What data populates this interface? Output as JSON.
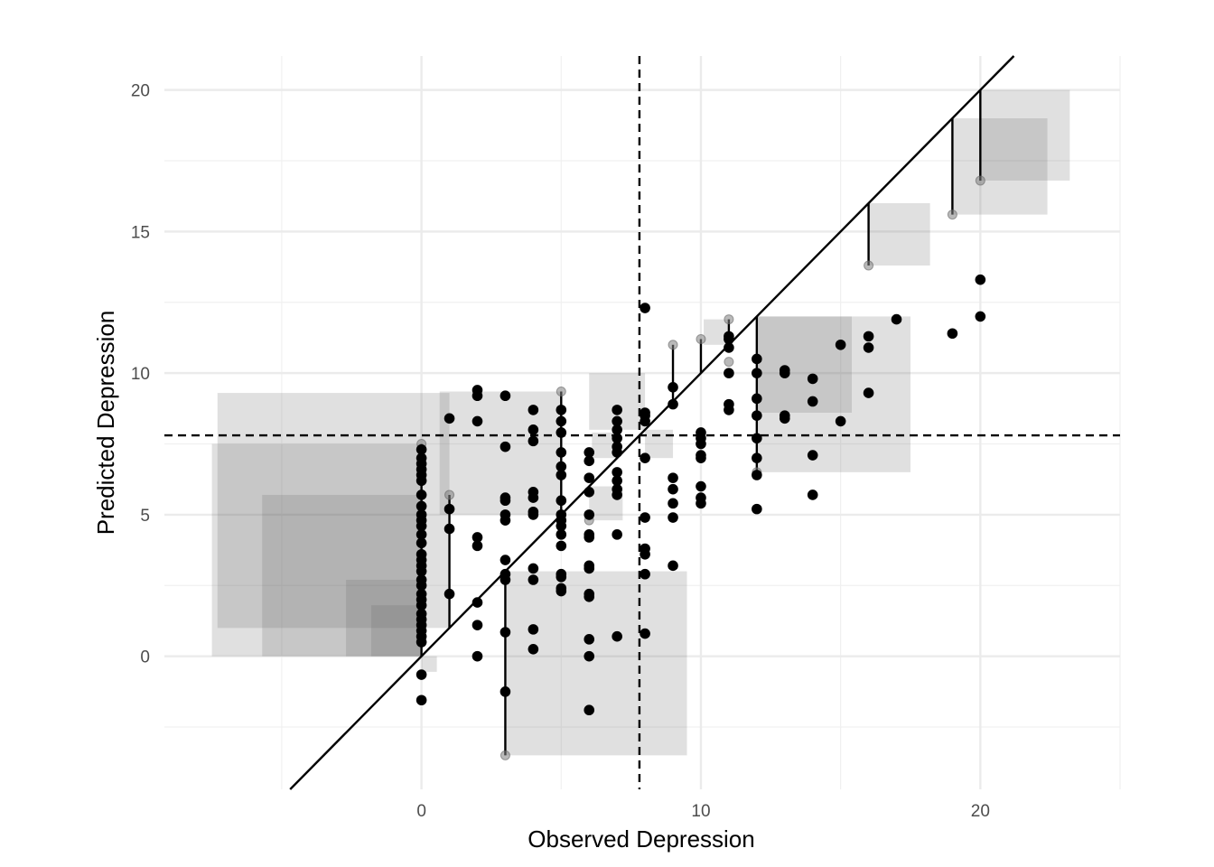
{
  "chart_data": {
    "type": "scatter",
    "title": "",
    "xlabel": "Observed Depression",
    "ylabel": "Predicted Depression",
    "xlim": [
      -9.2,
      25
    ],
    "ylim": [
      -4.7,
      21.2
    ],
    "x_ticks": [
      0,
      10,
      20
    ],
    "y_ticks": [
      0,
      5,
      10,
      15,
      20
    ],
    "x_tick_labels": [
      "0",
      "10",
      "20"
    ],
    "y_tick_labels": [
      "0",
      "5",
      "10",
      "15",
      "20"
    ],
    "grid": true,
    "legend": "none",
    "reference_lines": {
      "identity": {
        "slope": 1,
        "intercept": 0,
        "style": "solid"
      },
      "vertical_dashed_x": 7.8,
      "horizontal_dashed_y": 7.8
    },
    "squared_error_squares": [
      {
        "x": 0,
        "y": 7.5
      },
      {
        "x": 0,
        "y": 5.7
      },
      {
        "x": 0,
        "y": 2.7
      },
      {
        "x": 0,
        "y": 1.8
      },
      {
        "x": 0,
        "y": -0.55
      },
      {
        "x": 1,
        "y": 9.3
      },
      {
        "x": 3,
        "y": -3.5
      },
      {
        "x": 5,
        "y": 9.35
      },
      {
        "x": 6,
        "y": 4.8
      },
      {
        "x": 7,
        "y": 7.9
      },
      {
        "x": 8,
        "y": 10.0
      },
      {
        "x": 8,
        "y": 7.0
      },
      {
        "x": 11,
        "y": 11.9
      },
      {
        "x": 12,
        "y": 6.5
      },
      {
        "x": 12,
        "y": 8.6
      },
      {
        "x": 16,
        "y": 13.8
      },
      {
        "x": 19,
        "y": 15.6
      },
      {
        "x": 20,
        "y": 16.8
      }
    ],
    "residual_segments": [
      {
        "x": 0,
        "y_obs": 0,
        "y_pred": 7.5
      },
      {
        "x": 1,
        "y_obs": 1,
        "y_pred": 5.7
      },
      {
        "x": 3,
        "y_obs": 3,
        "y_pred": -3.5
      },
      {
        "x": 5,
        "y_obs": 5,
        "y_pred": 9.35
      },
      {
        "x": 9,
        "y_obs": 9,
        "y_pred": 11.0
      },
      {
        "x": 10,
        "y_obs": 10,
        "y_pred": 11.2
      },
      {
        "x": 11,
        "y_obs": 11,
        "y_pred": 11.9
      },
      {
        "x": 12,
        "y_obs": 12,
        "y_pred": 6.5
      },
      {
        "x": 16,
        "y_obs": 16,
        "y_pred": 13.8
      },
      {
        "x": 19,
        "y_obs": 19,
        "y_pred": 15.6
      },
      {
        "x": 20,
        "y_obs": 20,
        "y_pred": 16.8
      }
    ],
    "highlight_points": [
      {
        "x": 0,
        "y": 7.5
      },
      {
        "x": 1,
        "y": 5.7
      },
      {
        "x": 3,
        "y": -3.5
      },
      {
        "x": 5,
        "y": 9.35
      },
      {
        "x": 6,
        "y": 4.8
      },
      {
        "x": 9,
        "y": 11.0
      },
      {
        "x": 10,
        "y": 11.2
      },
      {
        "x": 11,
        "y": 11.9
      },
      {
        "x": 11,
        "y": 10.4
      },
      {
        "x": 12,
        "y": 6.5
      },
      {
        "x": 16,
        "y": 13.8
      },
      {
        "x": 19,
        "y": 15.6
      },
      {
        "x": 20,
        "y": 16.8
      }
    ],
    "points": [
      {
        "x": 0,
        "y": 7.3
      },
      {
        "x": 0,
        "y": 7.0
      },
      {
        "x": 0,
        "y": 6.8
      },
      {
        "x": 0,
        "y": 6.6
      },
      {
        "x": 0,
        "y": 6.4
      },
      {
        "x": 0,
        "y": 6.2
      },
      {
        "x": 0,
        "y": 5.7
      },
      {
        "x": 0,
        "y": 5.3
      },
      {
        "x": 0,
        "y": 5.0
      },
      {
        "x": 0,
        "y": 4.8
      },
      {
        "x": 0,
        "y": 4.6
      },
      {
        "x": 0,
        "y": 4.3
      },
      {
        "x": 0,
        "y": 4.0
      },
      {
        "x": 0,
        "y": 3.6
      },
      {
        "x": 0,
        "y": 3.4
      },
      {
        "x": 0,
        "y": 3.2
      },
      {
        "x": 0,
        "y": 3.0
      },
      {
        "x": 0,
        "y": 2.7
      },
      {
        "x": 0,
        "y": 2.5
      },
      {
        "x": 0,
        "y": 2.2
      },
      {
        "x": 0,
        "y": 2.0
      },
      {
        "x": 0,
        "y": 1.8
      },
      {
        "x": 0,
        "y": 1.5
      },
      {
        "x": 0,
        "y": 1.3
      },
      {
        "x": 0,
        "y": 1.1
      },
      {
        "x": 0,
        "y": 0.9
      },
      {
        "x": 0,
        "y": 0.7
      },
      {
        "x": 0,
        "y": 0.5
      },
      {
        "x": 0,
        "y": -0.65
      },
      {
        "x": 0,
        "y": -1.55
      },
      {
        "x": 1,
        "y": 8.4
      },
      {
        "x": 1,
        "y": 5.2
      },
      {
        "x": 1,
        "y": 4.5
      },
      {
        "x": 1,
        "y": 2.2
      },
      {
        "x": 2,
        "y": 9.4
      },
      {
        "x": 2,
        "y": 9.2
      },
      {
        "x": 2,
        "y": 8.3
      },
      {
        "x": 2,
        "y": 4.2
      },
      {
        "x": 2,
        "y": 3.9
      },
      {
        "x": 2,
        "y": 1.9
      },
      {
        "x": 2,
        "y": 1.1
      },
      {
        "x": 2,
        "y": 0.0
      },
      {
        "x": 3,
        "y": 9.2
      },
      {
        "x": 3,
        "y": 7.4
      },
      {
        "x": 3,
        "y": 5.6
      },
      {
        "x": 3,
        "y": 5.5
      },
      {
        "x": 3,
        "y": 5.0
      },
      {
        "x": 3,
        "y": 4.8
      },
      {
        "x": 3,
        "y": 3.4
      },
      {
        "x": 3,
        "y": 2.9
      },
      {
        "x": 3,
        "y": 2.7
      },
      {
        "x": 3,
        "y": 0.85
      },
      {
        "x": 3,
        "y": -1.25
      },
      {
        "x": 4,
        "y": 8.7
      },
      {
        "x": 4,
        "y": 8.0
      },
      {
        "x": 4,
        "y": 7.6
      },
      {
        "x": 4,
        "y": 5.8
      },
      {
        "x": 4,
        "y": 5.6
      },
      {
        "x": 4,
        "y": 5.1
      },
      {
        "x": 4,
        "y": 5.0
      },
      {
        "x": 4,
        "y": 3.1
      },
      {
        "x": 4,
        "y": 2.7
      },
      {
        "x": 4,
        "y": 0.95
      },
      {
        "x": 4,
        "y": 0.25
      },
      {
        "x": 5,
        "y": 8.7
      },
      {
        "x": 5,
        "y": 8.3
      },
      {
        "x": 5,
        "y": 7.9
      },
      {
        "x": 5,
        "y": 7.2
      },
      {
        "x": 5,
        "y": 6.7
      },
      {
        "x": 5,
        "y": 6.4
      },
      {
        "x": 5,
        "y": 5.5
      },
      {
        "x": 5,
        "y": 5.0
      },
      {
        "x": 5,
        "y": 4.8
      },
      {
        "x": 5,
        "y": 4.6
      },
      {
        "x": 5,
        "y": 4.3
      },
      {
        "x": 5,
        "y": 3.9
      },
      {
        "x": 5,
        "y": 2.9
      },
      {
        "x": 5,
        "y": 2.8
      },
      {
        "x": 5,
        "y": 2.4
      },
      {
        "x": 5,
        "y": 2.3
      },
      {
        "x": 6,
        "y": 7.2
      },
      {
        "x": 6,
        "y": 6.9
      },
      {
        "x": 6,
        "y": 6.3
      },
      {
        "x": 6,
        "y": 5.8
      },
      {
        "x": 6,
        "y": 5.0
      },
      {
        "x": 6,
        "y": 4.3
      },
      {
        "x": 6,
        "y": 4.2
      },
      {
        "x": 6,
        "y": 3.2
      },
      {
        "x": 6,
        "y": 3.1
      },
      {
        "x": 6,
        "y": 2.2
      },
      {
        "x": 6,
        "y": 2.1
      },
      {
        "x": 6,
        "y": 0.6
      },
      {
        "x": 6,
        "y": 0.0
      },
      {
        "x": 6,
        "y": -1.9
      },
      {
        "x": 7,
        "y": 8.7
      },
      {
        "x": 7,
        "y": 8.3
      },
      {
        "x": 7,
        "y": 8.0
      },
      {
        "x": 7,
        "y": 7.7
      },
      {
        "x": 7,
        "y": 7.4
      },
      {
        "x": 7,
        "y": 7.2
      },
      {
        "x": 7,
        "y": 6.5
      },
      {
        "x": 7,
        "y": 6.2
      },
      {
        "x": 7,
        "y": 5.9
      },
      {
        "x": 7,
        "y": 5.7
      },
      {
        "x": 7,
        "y": 4.3
      },
      {
        "x": 7,
        "y": 0.7
      },
      {
        "x": 8,
        "y": 12.3
      },
      {
        "x": 8,
        "y": 8.6
      },
      {
        "x": 8,
        "y": 8.5
      },
      {
        "x": 8,
        "y": 8.3
      },
      {
        "x": 8,
        "y": 7.0
      },
      {
        "x": 8,
        "y": 4.9
      },
      {
        "x": 8,
        "y": 3.8
      },
      {
        "x": 8,
        "y": 3.6
      },
      {
        "x": 8,
        "y": 2.9
      },
      {
        "x": 8,
        "y": 0.8
      },
      {
        "x": 9,
        "y": 9.5
      },
      {
        "x": 9,
        "y": 8.9
      },
      {
        "x": 9,
        "y": 6.3
      },
      {
        "x": 9,
        "y": 5.9
      },
      {
        "x": 9,
        "y": 5.4
      },
      {
        "x": 9,
        "y": 4.9
      },
      {
        "x": 9,
        "y": 3.2
      },
      {
        "x": 10,
        "y": 7.9
      },
      {
        "x": 10,
        "y": 7.7
      },
      {
        "x": 10,
        "y": 7.5
      },
      {
        "x": 10,
        "y": 7.1
      },
      {
        "x": 10,
        "y": 7.0
      },
      {
        "x": 10,
        "y": 6.0
      },
      {
        "x": 10,
        "y": 5.6
      },
      {
        "x": 10,
        "y": 5.4
      },
      {
        "x": 11,
        "y": 11.3
      },
      {
        "x": 11,
        "y": 11.2
      },
      {
        "x": 11,
        "y": 10.9
      },
      {
        "x": 11,
        "y": 10.0
      },
      {
        "x": 11,
        "y": 8.9
      },
      {
        "x": 11,
        "y": 8.7
      },
      {
        "x": 12,
        "y": 10.5
      },
      {
        "x": 12,
        "y": 10.0
      },
      {
        "x": 12,
        "y": 9.1
      },
      {
        "x": 12,
        "y": 8.5
      },
      {
        "x": 12,
        "y": 7.7
      },
      {
        "x": 12,
        "y": 7.0
      },
      {
        "x": 12,
        "y": 6.4
      },
      {
        "x": 12,
        "y": 5.2
      },
      {
        "x": 13,
        "y": 10.1
      },
      {
        "x": 13,
        "y": 10.0
      },
      {
        "x": 13,
        "y": 8.5
      },
      {
        "x": 13,
        "y": 8.4
      },
      {
        "x": 14,
        "y": 9.8
      },
      {
        "x": 14,
        "y": 9.0
      },
      {
        "x": 14,
        "y": 7.1
      },
      {
        "x": 14,
        "y": 5.7
      },
      {
        "x": 15,
        "y": 11.0
      },
      {
        "x": 15,
        "y": 8.3
      },
      {
        "x": 16,
        "y": 11.3
      },
      {
        "x": 16,
        "y": 10.9
      },
      {
        "x": 16,
        "y": 9.3
      },
      {
        "x": 17,
        "y": 11.9
      },
      {
        "x": 19,
        "y": 11.4
      },
      {
        "x": 20,
        "y": 13.3
      },
      {
        "x": 20,
        "y": 12.0
      }
    ]
  }
}
